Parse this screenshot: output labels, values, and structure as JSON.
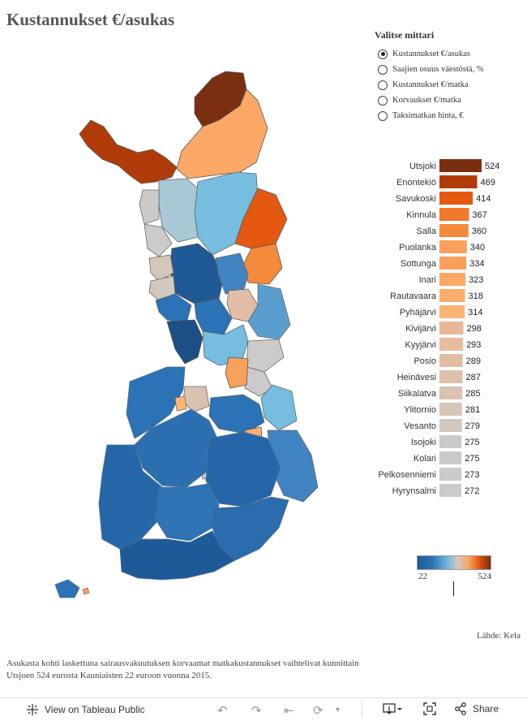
{
  "title": "Kustannukset €/asukas",
  "selector": {
    "heading": "Valitse mittari",
    "options": [
      {
        "label": "Kustannukset €/asukas",
        "selected": true
      },
      {
        "label": "Saajien osuus väestöstä, %",
        "selected": false
      },
      {
        "label": "Kustannukset €/matka",
        "selected": false
      },
      {
        "label": "Korvaukset €/matka",
        "selected": false
      },
      {
        "label": "Taksimatkan hinta, €",
        "selected": false
      }
    ]
  },
  "chart_data": {
    "type": "bar",
    "orientation": "horizontal",
    "categories": [
      "Utsjoki",
      "Enontekiö",
      "Savukoski",
      "Kinnula",
      "Salla",
      "Puolanka",
      "Sottunga",
      "Inari",
      "Rautavaara",
      "Pyhäjärvi",
      "Kivijärvi",
      "Kyyjärvi",
      "Posio",
      "Heinävesi",
      "Siikalatva",
      "Ylitornio",
      "Vesanto",
      "Isojoki",
      "Kolari",
      "Pelkosenniemi",
      "Hyrynsalmi"
    ],
    "values": [
      524,
      469,
      414,
      367,
      360,
      340,
      334,
      323,
      318,
      314,
      298,
      293,
      289,
      287,
      285,
      281,
      279,
      275,
      275,
      273,
      272
    ],
    "colors": [
      "#7a2f10",
      "#b13b08",
      "#e5580f",
      "#f2782a",
      "#f68a3c",
      "#f9a05c",
      "#f9a05c",
      "#fba866",
      "#fcae6c",
      "#fcb373",
      "#e8b797",
      "#e6bb9e",
      "#e2bda6",
      "#ddc0ac",
      "#dac2b1",
      "#d6c6b8",
      "#d2c8bf",
      "#cccac7",
      "#cccac7",
      "#cbcbcb",
      "#cbcbcb"
    ]
  },
  "legend": {
    "min": "22",
    "max": "524"
  },
  "source": "Lähde: Kela",
  "caption": "Asukasta kohti laskettuna sairausvakuutuksen korvaamat matkakustannukset vaihtelivat kunnittain Utsjoen 524 eurosta Kauniaisten 22 euroon vuonna 2015.",
  "toolbar": {
    "view_label": "View on Tableau Public",
    "share_label": "Share"
  }
}
